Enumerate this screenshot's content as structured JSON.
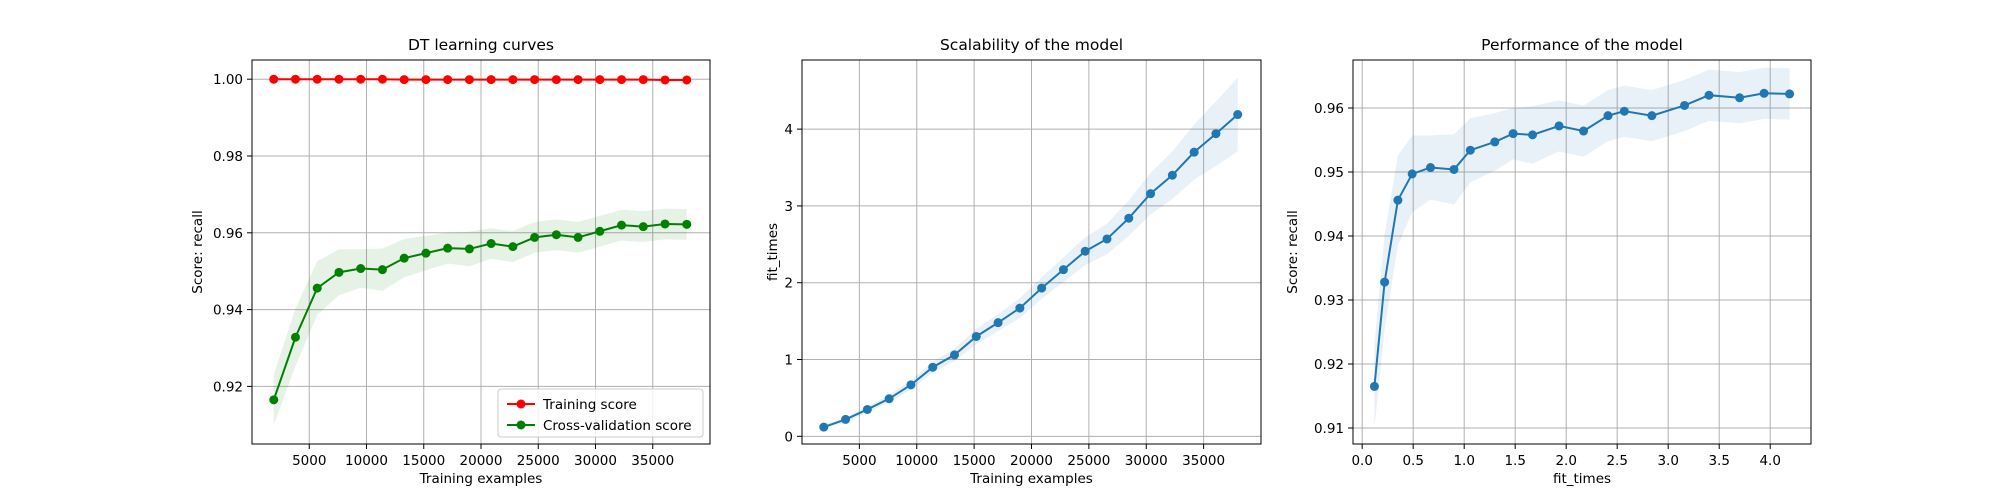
{
  "chart_data": [
    {
      "type": "line",
      "title": "DT learning curves",
      "xlabel": "Training examples",
      "ylabel": "Score: recall",
      "xlim": [
        0,
        40000
      ],
      "ylim": [
        0.905,
        1.005
      ],
      "xticks": [
        5000,
        10000,
        15000,
        20000,
        25000,
        30000,
        35000
      ],
      "xtick_labels": [
        "5000",
        "10000",
        "15000",
        "20000",
        "25000",
        "30000",
        "35000"
      ],
      "yticks": [
        0.92,
        0.94,
        0.96,
        0.98,
        1.0
      ],
      "ytick_labels": [
        "0.92",
        "0.94",
        "0.96",
        "0.98",
        "1.00"
      ],
      "grid": true,
      "legend_position": "bottom-right",
      "x": [
        1899,
        3797,
        5696,
        7594,
        9493,
        11391,
        13290,
        15189,
        17087,
        18986,
        20884,
        22783,
        24681,
        26580,
        28478,
        30377,
        32276,
        34174,
        36073,
        37971
      ],
      "series": [
        {
          "name": "Training score",
          "color": "#ff0000",
          "values": [
            1.0,
            1.0,
            1.0,
            1.0,
            1.0,
            1.0,
            0.9999,
            0.9999,
            0.9999,
            0.9999,
            0.9999,
            0.9999,
            0.9999,
            0.9999,
            0.9999,
            0.9999,
            0.9999,
            0.9999,
            0.9998,
            0.9998
          ],
          "band": [
            0.0002,
            0.0002,
            0.0002,
            0.0002,
            0.0002,
            0.0002,
            0.0002,
            0.0002,
            0.0002,
            0.0002,
            0.0002,
            0.0002,
            0.0002,
            0.0002,
            0.0002,
            0.0002,
            0.0002,
            0.0002,
            0.0002,
            0.0002
          ]
        },
        {
          "name": "Cross-validation score",
          "color": "#008000",
          "values": [
            0.9165,
            0.9328,
            0.9456,
            0.9497,
            0.9507,
            0.9504,
            0.9534,
            0.9547,
            0.956,
            0.9558,
            0.9572,
            0.9564,
            0.9588,
            0.9595,
            0.9588,
            0.9604,
            0.962,
            0.9616,
            0.9623,
            0.9622
          ],
          "band": [
            0.0065,
            0.0075,
            0.007,
            0.006,
            0.005,
            0.0055,
            0.005,
            0.0045,
            0.004,
            0.0045,
            0.004,
            0.004,
            0.004,
            0.004,
            0.004,
            0.004,
            0.004,
            0.004,
            0.004,
            0.004
          ]
        }
      ]
    },
    {
      "type": "line",
      "title": "Scalability of the model",
      "xlabel": "Training examples",
      "ylabel": "fit_times",
      "xlim": [
        0,
        40000
      ],
      "ylim": [
        -0.1,
        4.9
      ],
      "xticks": [
        5000,
        10000,
        15000,
        20000,
        25000,
        30000,
        35000
      ],
      "xtick_labels": [
        "5000",
        "10000",
        "15000",
        "20000",
        "25000",
        "30000",
        "35000"
      ],
      "yticks": [
        0,
        1,
        2,
        3,
        4
      ],
      "ytick_labels": [
        "0",
        "1",
        "2",
        "3",
        "4"
      ],
      "grid": true,
      "x": [
        1899,
        3797,
        5696,
        7594,
        9493,
        11391,
        13290,
        15189,
        17087,
        18986,
        20884,
        22783,
        24681,
        26580,
        28478,
        30377,
        32276,
        34174,
        36073,
        37971
      ],
      "series": [
        {
          "color": "#1f77b4",
          "values": [
            0.12,
            0.22,
            0.35,
            0.49,
            0.67,
            0.9,
            1.06,
            1.3,
            1.48,
            1.67,
            1.93,
            2.17,
            2.41,
            2.57,
            2.84,
            3.16,
            3.4,
            3.7,
            3.94,
            4.19
          ],
          "band": [
            0.02,
            0.03,
            0.04,
            0.05,
            0.06,
            0.07,
            0.08,
            0.1,
            0.11,
            0.13,
            0.14,
            0.16,
            0.18,
            0.2,
            0.23,
            0.27,
            0.31,
            0.36,
            0.42,
            0.48
          ]
        }
      ]
    },
    {
      "type": "line",
      "title": "Performance of the model",
      "xlabel": "fit_times",
      "ylabel": "Score: recall",
      "xlim": [
        -0.09,
        4.4
      ],
      "ylim": [
        0.9075,
        0.9675
      ],
      "xticks": [
        0.0,
        0.5,
        1.0,
        1.5,
        2.0,
        2.5,
        3.0,
        3.5,
        4.0
      ],
      "xtick_labels": [
        "0.0",
        "0.5",
        "1.0",
        "1.5",
        "2.0",
        "2.5",
        "3.0",
        "3.5",
        "4.0"
      ],
      "yticks": [
        0.91,
        0.92,
        0.93,
        0.94,
        0.95,
        0.96
      ],
      "ytick_labels": [
        "0.91",
        "0.92",
        "0.93",
        "0.94",
        "0.95",
        "0.96"
      ],
      "grid": true,
      "series": [
        {
          "color": "#1f77b4",
          "x": [
            0.12,
            0.22,
            0.35,
            0.49,
            0.67,
            0.9,
            1.06,
            1.3,
            1.48,
            1.67,
            1.93,
            2.17,
            2.41,
            2.57,
            2.84,
            3.16,
            3.4,
            3.7,
            3.94,
            4.19
          ],
          "values": [
            0.9165,
            0.9328,
            0.9456,
            0.9497,
            0.9507,
            0.9504,
            0.9534,
            0.9547,
            0.956,
            0.9558,
            0.9572,
            0.9564,
            0.9588,
            0.9595,
            0.9588,
            0.9604,
            0.962,
            0.9616,
            0.9623,
            0.9622
          ],
          "band": [
            0.0065,
            0.0075,
            0.007,
            0.006,
            0.005,
            0.0055,
            0.005,
            0.0045,
            0.004,
            0.0045,
            0.004,
            0.004,
            0.004,
            0.004,
            0.004,
            0.004,
            0.004,
            0.004,
            0.004,
            0.004
          ]
        }
      ]
    }
  ]
}
